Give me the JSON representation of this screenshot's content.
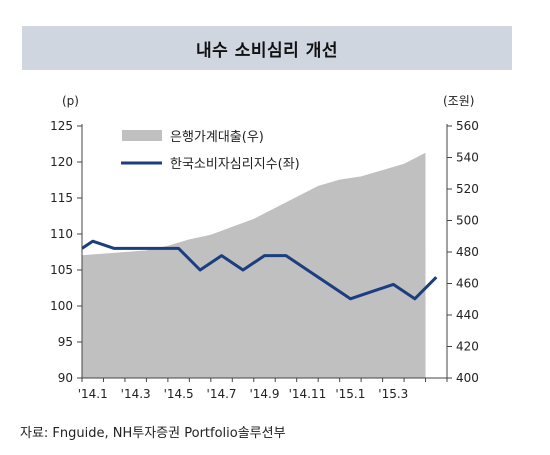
{
  "header": {
    "title": "내수 소비심리 개선"
  },
  "source": "자료: Fnguide, NH투자증권 Portfolio솔루션부",
  "chart_data": {
    "type": "line",
    "left_unit": "(p)",
    "right_unit": "(조원)",
    "x_labels": [
      "'14.1",
      "'14.3",
      "'14.5",
      "'14.7",
      "'14.9",
      "'14.11",
      "'15.1",
      "'15.3"
    ],
    "left_axis": {
      "min": 90,
      "max": 125,
      "ticks": [
        90,
        95,
        100,
        105,
        110,
        115,
        120,
        125
      ]
    },
    "right_axis": {
      "min": 400,
      "max": 560,
      "ticks": [
        400,
        420,
        440,
        460,
        480,
        500,
        520,
        540,
        560
      ]
    },
    "series": [
      {
        "name": "은행가계대출(우)",
        "type": "area",
        "axis": "right",
        "color": "#c0c0c0",
        "x": [
          0,
          1,
          2,
          3,
          4,
          5,
          6,
          7,
          8,
          9,
          10,
          11,
          12,
          13,
          14,
          15,
          16
        ],
        "values": [
          478,
          479,
          480,
          481,
          484,
          488,
          491,
          496,
          501,
          508,
          515,
          522,
          526,
          528,
          532,
          536,
          543
        ]
      },
      {
        "name": "한국소비자심리지수(좌)",
        "type": "line",
        "axis": "left",
        "color": "#1a3e80",
        "x": [
          0,
          0.5,
          1.5,
          2.5,
          3.5,
          4.5,
          5.5,
          6.5,
          7.5,
          8.5,
          9.5,
          10.5,
          11.5,
          12.5,
          13.5,
          14.5,
          15.5,
          16.5
        ],
        "values": [
          108,
          109,
          108,
          108,
          108,
          108,
          105,
          107,
          105,
          107,
          107,
          105,
          103,
          101,
          102,
          103,
          101,
          104
        ]
      }
    ],
    "grid": false,
    "legend_position": "top-left"
  }
}
